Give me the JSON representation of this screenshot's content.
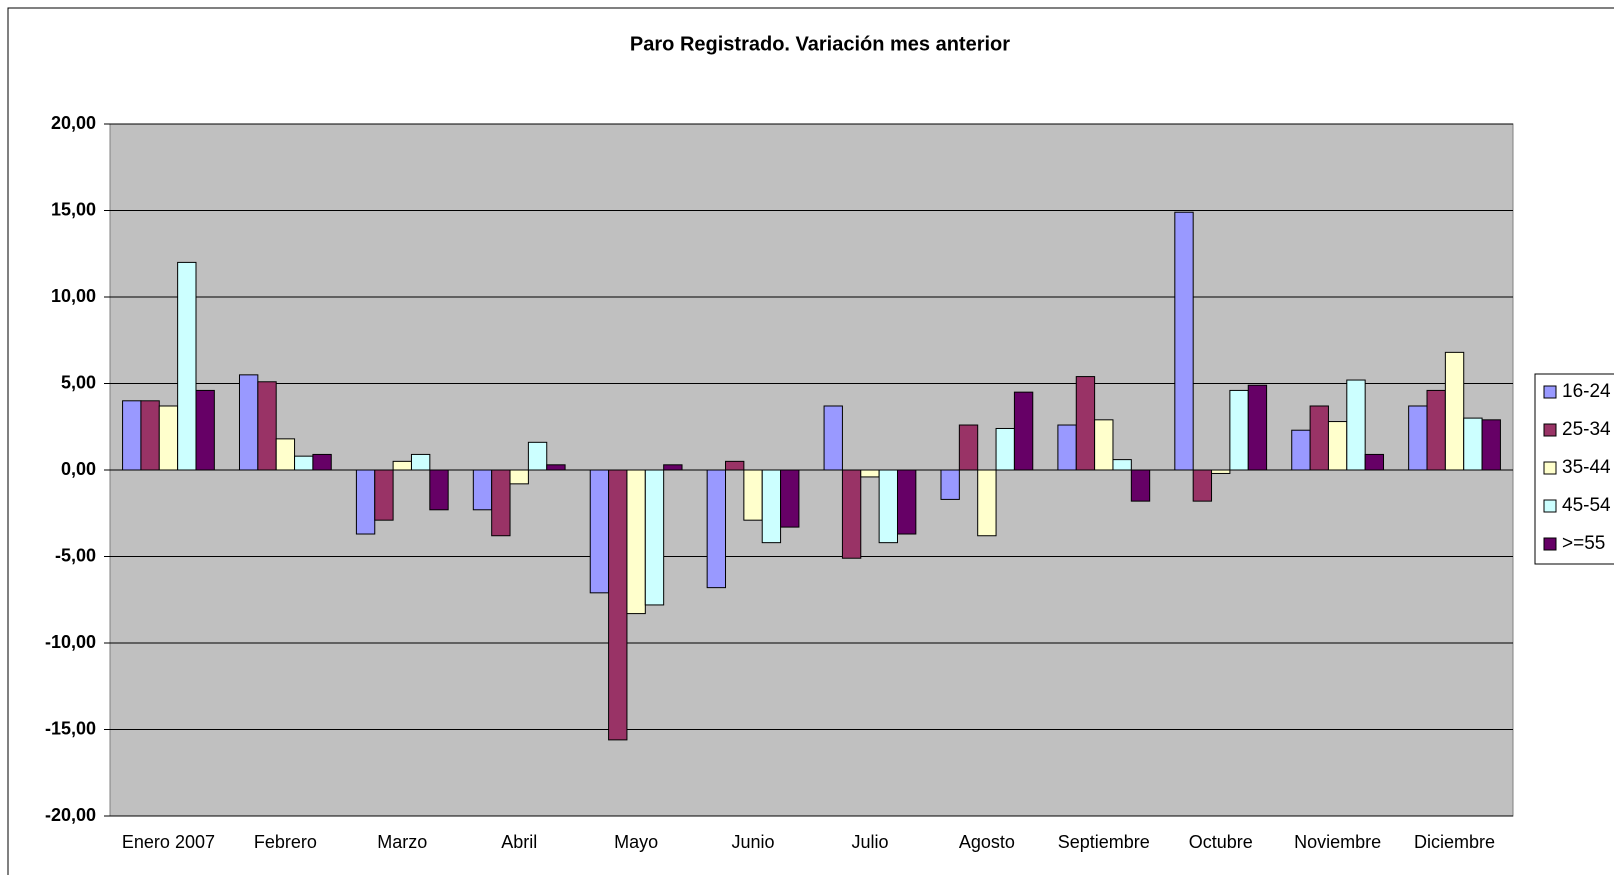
{
  "chart_data": {
    "type": "bar",
    "title": "Paro Registrado. Variación mes anterior",
    "categories": [
      "Enero 2007",
      "Febrero",
      "Marzo",
      "Abril",
      "Mayo",
      "Junio",
      "Julio",
      "Agosto",
      "Septiembre",
      "Octubre",
      "Noviembre",
      "Diciembre"
    ],
    "series": [
      {
        "name": "16-24",
        "color": "#9999ff",
        "values": [
          4.0,
          5.5,
          -3.7,
          -2.3,
          -7.1,
          -6.8,
          3.7,
          -1.7,
          2.6,
          14.9,
          2.3,
          3.7
        ]
      },
      {
        "name": "25-34",
        "color": "#993366",
        "values": [
          4.0,
          5.1,
          -2.9,
          -3.8,
          -15.6,
          0.5,
          -5.1,
          2.6,
          5.4,
          -1.8,
          3.7,
          4.6
        ]
      },
      {
        "name": "35-44",
        "color": "#ffffcc",
        "values": [
          3.7,
          1.8,
          0.5,
          -0.8,
          -8.3,
          -2.9,
          -0.4,
          -3.8,
          2.9,
          -0.2,
          2.8,
          6.8
        ]
      },
      {
        "name": "45-54",
        "color": "#ccffff",
        "values": [
          12.0,
          0.8,
          0.9,
          1.6,
          -7.8,
          -4.2,
          -4.2,
          2.4,
          0.6,
          4.6,
          5.2,
          3.0
        ]
      },
      {
        "name": ">=55",
        "color": "#660066",
        "values": [
          4.6,
          0.9,
          -2.3,
          0.3,
          0.3,
          -3.3,
          -3.7,
          4.5,
          -1.8,
          4.9,
          0.9,
          2.9
        ]
      }
    ],
    "ylim": [
      -20,
      20
    ],
    "yticks": [
      {
        "value": -20,
        "label": "-20,00"
      },
      {
        "value": -15,
        "label": "-15,00"
      },
      {
        "value": -10,
        "label": "-10,00"
      },
      {
        "value": -5,
        "label": "-5,00"
      },
      {
        "value": 0,
        "label": "0,00"
      },
      {
        "value": 5,
        "label": "5,00"
      },
      {
        "value": 10,
        "label": "10,00"
      },
      {
        "value": 15,
        "label": "15,00"
      },
      {
        "value": 20,
        "label": "20,00"
      }
    ],
    "grid": true,
    "legend": "right",
    "plot_background": "#c0c0c0"
  }
}
